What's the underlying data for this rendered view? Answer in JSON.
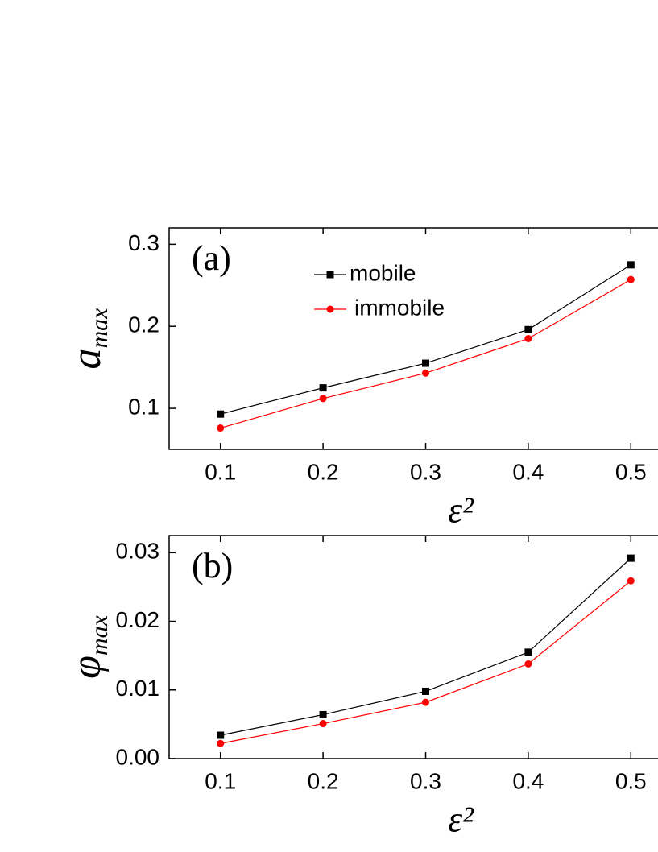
{
  "chart_data": [
    {
      "type": "line",
      "panel_label": "(a)",
      "ylabel": "a",
      "ylabel_sub": "max",
      "xlabel": "ε²",
      "x": [
        0.1,
        0.2,
        0.3,
        0.4,
        0.5
      ],
      "xlim": [
        0.05,
        0.55
      ],
      "xticks": [
        0.1,
        0.2,
        0.3,
        0.4,
        0.5
      ],
      "ylim": [
        0.05,
        0.32
      ],
      "yticks": [
        0.1,
        0.2,
        0.3
      ],
      "legend": "upper center",
      "series": [
        {
          "name": "mobile",
          "color": "#000000",
          "marker": "square",
          "values": [
            0.093,
            0.125,
            0.155,
            0.196,
            0.275
          ]
        },
        {
          "name": "immobile",
          "color": "#ff0000",
          "marker": "circle",
          "values": [
            0.076,
            0.112,
            0.143,
            0.185,
            0.257
          ]
        }
      ]
    },
    {
      "type": "line",
      "panel_label": "(b)",
      "ylabel": "φ",
      "ylabel_sub": "max",
      "xlabel": "ε²",
      "x": [
        0.1,
        0.2,
        0.3,
        0.4,
        0.5
      ],
      "xlim": [
        0.05,
        0.55
      ],
      "xticks": [
        0.1,
        0.2,
        0.3,
        0.4,
        0.5
      ],
      "ylim": [
        0,
        0.0325
      ],
      "yticks": [
        {
          "value": 0,
          "label": "0.00"
        },
        0.01,
        0.02,
        0.03
      ],
      "legend": false,
      "series": [
        {
          "name": "mobile",
          "color": "#000000",
          "marker": "square",
          "values": [
            0.0034,
            0.0064,
            0.0098,
            0.0155,
            0.0292
          ]
        },
        {
          "name": "immobile",
          "color": "#ff0000",
          "marker": "circle",
          "values": [
            0.0022,
            0.0051,
            0.0082,
            0.0138,
            0.0259
          ]
        }
      ]
    }
  ]
}
